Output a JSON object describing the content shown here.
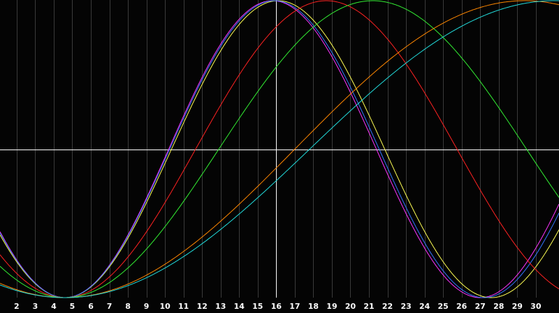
{
  "chart_data": {
    "type": "line",
    "title": "",
    "xlabel": "",
    "ylabel": "",
    "xlim": [
      1.1,
      31.25
    ],
    "ylim": [
      -1,
      1
    ],
    "x_ticks": [
      2,
      3,
      4,
      5,
      6,
      7,
      8,
      9,
      10,
      11,
      12,
      13,
      14,
      15,
      16,
      17,
      18,
      19,
      20,
      21,
      22,
      23,
      24,
      25,
      26,
      27,
      28,
      29,
      30
    ],
    "grid": true,
    "crosshair": {
      "x": 16,
      "y": 0
    },
    "colors": {
      "background": "#040404",
      "grid": "#3a3a3a",
      "crosshair": "#ffffff",
      "tick_label": "#ffffff"
    },
    "series": [
      {
        "color": "#ff33ff",
        "kind": "cosine",
        "min_x": 4.6,
        "max_x": 15.8,
        "period": 22.4
      },
      {
        "color": "#ffff55",
        "kind": "cosine",
        "min_x": 4.6,
        "max_x": 16.1,
        "period": 23.0
      },
      {
        "color": "#3377ff",
        "kind": "cosine",
        "min_x": 4.6,
        "max_x": 15.9,
        "period": 22.6
      },
      {
        "color": "#ff2222",
        "kind": "cosine",
        "min_x": 4.6,
        "max_x": 18.7,
        "period": 28.2
      },
      {
        "color": "#33ee33",
        "kind": "cosine",
        "min_x": 4.6,
        "max_x": 21.2,
        "period": 33.2
      },
      {
        "color": "#ff8800",
        "kind": "cosine",
        "min_x": 4.6,
        "max_x": 29.4,
        "period": 49.6
      },
      {
        "color": "#22dddd",
        "kind": "cosine",
        "min_x": 4.6,
        "max_x": 31.0,
        "period": 52.8
      }
    ]
  }
}
